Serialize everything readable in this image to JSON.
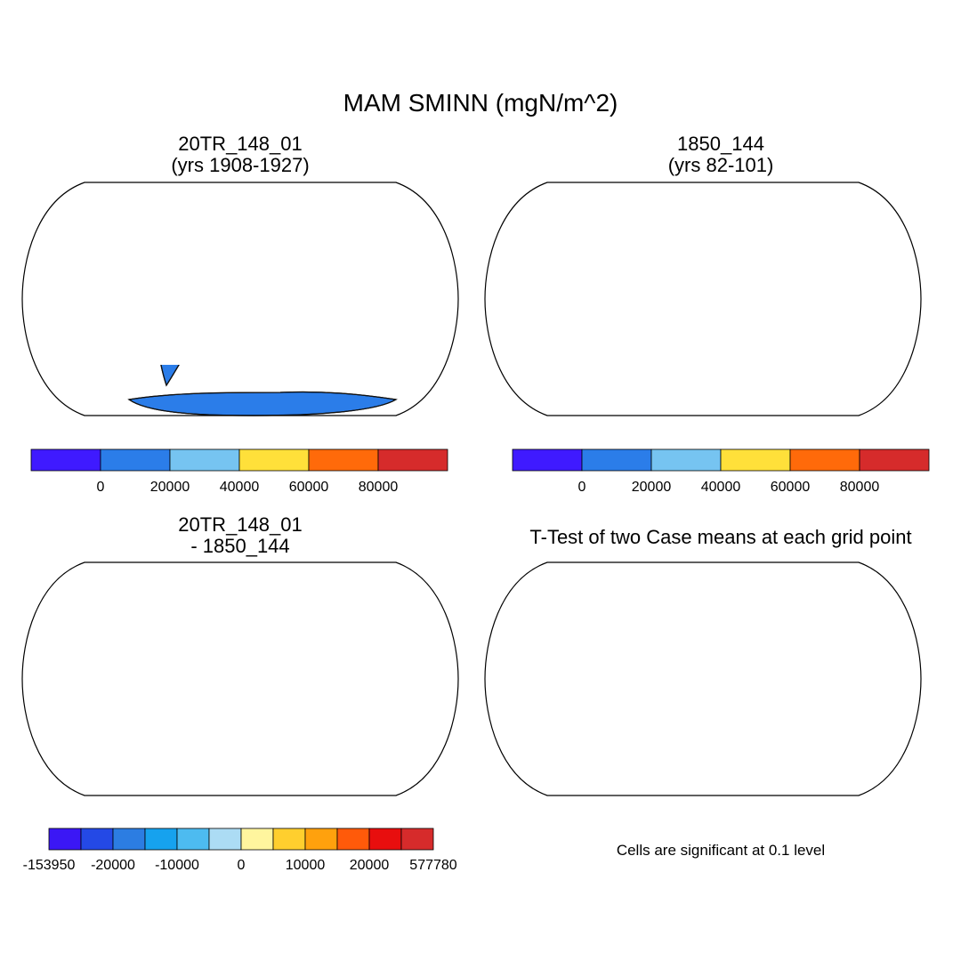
{
  "title": "MAM SMINN (mgN/m^2)",
  "chart_data": [
    {
      "type": "heatmap",
      "title_lines": [
        "20TR_148_01",
        "(yrs 1908-1927)"
      ],
      "colorbar": {
        "colors": [
          "#3f1aff",
          "#2b7de9",
          "#76c4f1",
          "#ffe03a",
          "#ff6a0a",
          "#d62b2b"
        ],
        "labels": [
          "0",
          "20000",
          "40000",
          "60000",
          "80000"
        ]
      }
    },
    {
      "type": "heatmap",
      "title_lines": [
        "1850_144",
        "(yrs 82-101)"
      ],
      "colorbar": {
        "colors": [
          "#3f1aff",
          "#2b7de9",
          "#76c4f1",
          "#ffe03a",
          "#ff6a0a",
          "#d62b2b"
        ],
        "labels": [
          "0",
          "20000",
          "40000",
          "60000",
          "80000"
        ]
      }
    },
    {
      "type": "heatmap",
      "title_lines": [
        "20TR_148_01",
        "- 1850_144"
      ],
      "colorbar": {
        "colors": [
          "#3b17f5",
          "#2449e6",
          "#2c7de2",
          "#16a2ee",
          "#4dbbf0",
          "#acdcf4",
          "#fff59e",
          "#ffcf2e",
          "#ffa10d",
          "#ff5a0a",
          "#e80e0e",
          "#d62b2b"
        ],
        "labels": [
          "-153950",
          "-20000",
          "-10000",
          "0",
          "10000",
          "20000",
          "577780"
        ]
      }
    },
    {
      "type": "heatmap",
      "title_lines": [
        "T-Test of two Case means at each grid point"
      ],
      "note": "Cells are significant at 0.1 level"
    }
  ]
}
